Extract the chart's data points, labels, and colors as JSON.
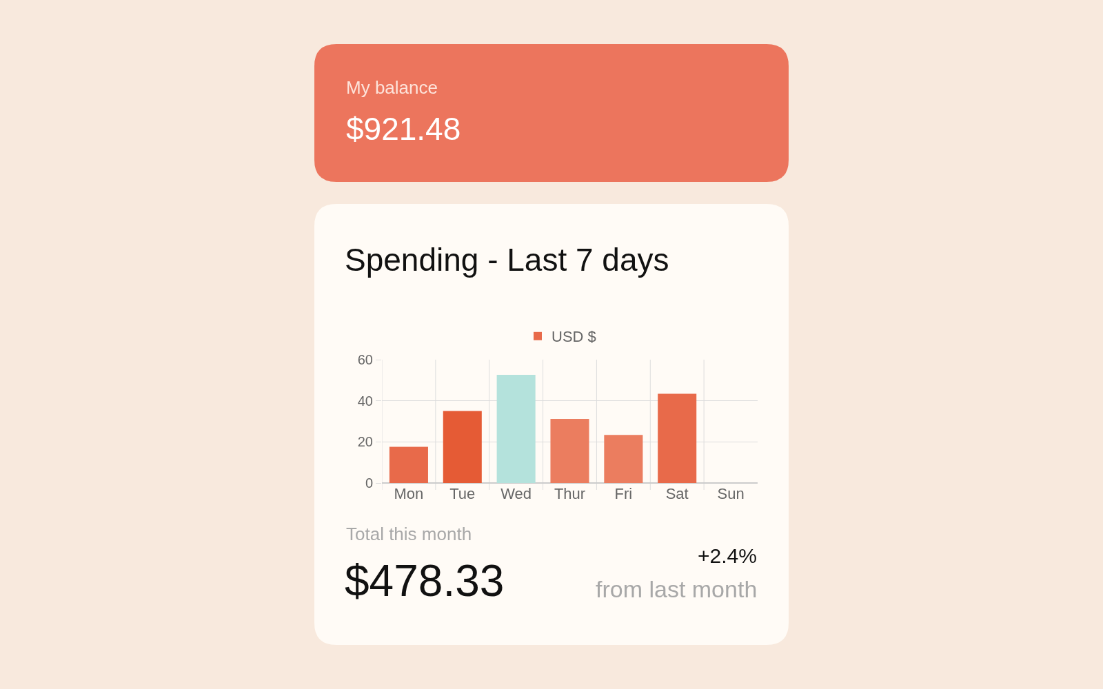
{
  "chart_data": {
    "type": "bar",
    "title": "Spending - Last 7 days",
    "categories": [
      "Mon",
      "Tue",
      "Wed",
      "Thur",
      "Fri",
      "Sat",
      "Sun"
    ],
    "series": [
      {
        "name": "USD $",
        "colors": [
          "#e86a4a",
          "#e55b35",
          "#b4e2dc",
          "#eb7d5f",
          "#eb7d5f",
          "#e86a4a",
          "#e86a4a"
        ],
        "values": [
          17.6,
          35,
          52.6,
          31.2,
          23.4,
          43.4,
          0
        ]
      }
    ],
    "ylim": [
      0,
      60
    ],
    "yticks": [
      0,
      20,
      40,
      60
    ],
    "grid": true,
    "legend": "top",
    "annotations": [
      "My balance",
      "$921.48",
      "Total this month",
      "$478.33",
      "+2.4%",
      "from last month"
    ]
  }
}
